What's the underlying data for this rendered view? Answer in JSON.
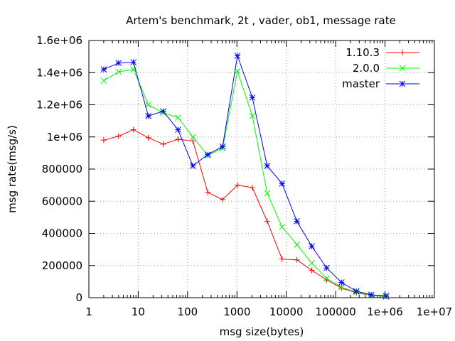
{
  "chart_data": {
    "type": "line",
    "title": "Artem's benchmark, 2t , vader, ob1, message rate",
    "xlabel": "msg size(bytes)",
    "ylabel": "msg rate(msg/s)",
    "x_scale": "log",
    "xlim": [
      1,
      10000000
    ],
    "ylim": [
      0,
      1600000
    ],
    "grid": true,
    "legend_position": "top-right",
    "x_ticks": [
      {
        "value": 1,
        "label": "1"
      },
      {
        "value": 10,
        "label": "10"
      },
      {
        "value": 100,
        "label": "100"
      },
      {
        "value": 1000,
        "label": "1000"
      },
      {
        "value": 10000,
        "label": "10000"
      },
      {
        "value": 100000,
        "label": "100000"
      },
      {
        "value": 1000000,
        "label": "1e+06"
      },
      {
        "value": 10000000,
        "label": "1e+07"
      }
    ],
    "y_ticks": [
      {
        "value": 0,
        "label": "0"
      },
      {
        "value": 200000,
        "label": "200000"
      },
      {
        "value": 400000,
        "label": "400000"
      },
      {
        "value": 600000,
        "label": "600000"
      },
      {
        "value": 800000,
        "label": "800000"
      },
      {
        "value": 1000000,
        "label": "1e+06"
      },
      {
        "value": 1200000,
        "label": "1.2e+06"
      },
      {
        "value": 1400000,
        "label": "1.4e+06"
      },
      {
        "value": 1600000,
        "label": "1.6e+06"
      }
    ],
    "x": [
      2,
      4,
      8,
      16,
      32,
      64,
      128,
      256,
      512,
      1024,
      2048,
      4096,
      8192,
      16384,
      32768,
      65536,
      131072,
      262144,
      524288,
      1048576
    ],
    "series": [
      {
        "name": "1.10.3",
        "color": "#ff0000",
        "marker": "plus",
        "values": [
          980000,
          1005000,
          1045000,
          995000,
          955000,
          985000,
          975000,
          655000,
          610000,
          700000,
          685000,
          475000,
          240000,
          235000,
          170000,
          110000,
          60000,
          30000,
          15000,
          8000
        ]
      },
      {
        "name": "2.0.0",
        "color": "#00ff00",
        "marker": "cross",
        "values": [
          1350000,
          1405000,
          1420000,
          1200000,
          1150000,
          1120000,
          1000000,
          885000,
          930000,
          1410000,
          1130000,
          650000,
          440000,
          330000,
          215000,
          120000,
          65000,
          35000,
          15000,
          6000
        ]
      },
      {
        "name": "master",
        "color": "#0000ff",
        "marker": "star",
        "values": [
          1420000,
          1460000,
          1465000,
          1130000,
          1160000,
          1045000,
          820000,
          890000,
          940000,
          1505000,
          1245000,
          820000,
          710000,
          475000,
          320000,
          185000,
          95000,
          40000,
          18000,
          10000
        ]
      }
    ]
  }
}
